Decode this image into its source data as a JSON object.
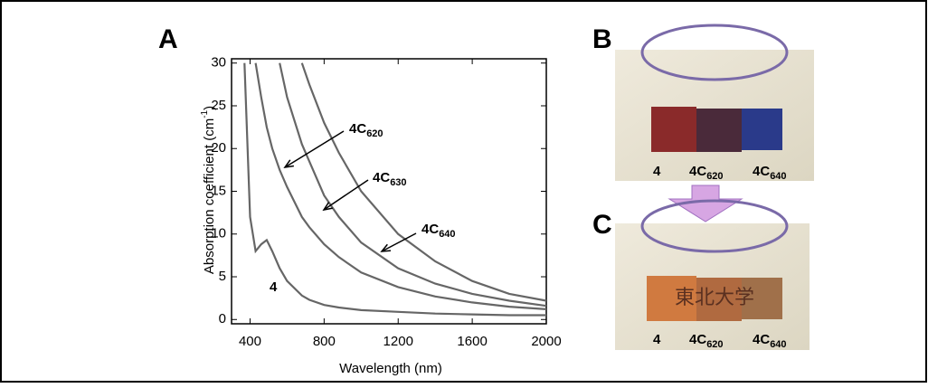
{
  "chart_data": {
    "type": "line",
    "panel": "A",
    "x_label": "Wavelength (nm)",
    "y_label": {
      "text": "Absorption coefficient (cm",
      "sup": "-1",
      "tail": ")"
    },
    "x": [
      370,
      400,
      430,
      460,
      490,
      520,
      560,
      600,
      680,
      720,
      800,
      880,
      1000,
      1200,
      1400,
      1600,
      1800,
      2000
    ],
    "series": [
      {
        "name": {
          "text": "4"
        },
        "color": "#666666",
        "values": [
          30,
          12,
          8,
          8.8,
          9.3,
          8,
          6,
          4.5,
          2.8,
          2.3,
          1.7,
          1.4,
          1.1,
          0.9,
          0.7,
          0.6,
          0.5,
          0.5
        ]
      },
      {
        "name": {
          "text": "4C",
          "sub": "620"
        },
        "color": "#666666",
        "values": [
          null,
          null,
          30,
          26,
          22.5,
          20,
          17.5,
          15.5,
          12,
          10.8,
          8.8,
          7.3,
          5.5,
          3.8,
          2.7,
          2,
          1.5,
          1.2
        ]
      },
      {
        "name": {
          "text": "4C",
          "sub": "630"
        },
        "color": "#666666",
        "values": [
          null,
          null,
          null,
          null,
          null,
          null,
          30,
          26,
          20.5,
          18.5,
          14.5,
          12,
          9,
          6,
          4.2,
          3,
          2.2,
          1.6
        ]
      },
      {
        "name": {
          "text": "4C",
          "sub": "640"
        },
        "color": "#666666",
        "values": [
          null,
          null,
          null,
          null,
          null,
          null,
          null,
          null,
          30,
          27.5,
          23,
          19.5,
          15,
          10,
          6.8,
          4.5,
          3,
          2.2
        ]
      }
    ],
    "xlim": [
      300,
      2000
    ],
    "ylim": [
      -0.5,
      30.5
    ],
    "xticks": [
      400,
      800,
      1200,
      1600,
      2000
    ],
    "yticks": [
      0,
      5,
      10,
      15,
      20,
      25,
      30
    ]
  },
  "photos": [
    {
      "panel": "B",
      "labels": [
        {
          "text": "4"
        },
        {
          "text": "4C",
          "sub": "620"
        },
        {
          "text": "4C",
          "sub": "640"
        }
      ]
    },
    {
      "panel": "C",
      "stamp": "東北大学",
      "labels": [
        {
          "text": "4"
        },
        {
          "text": "4C",
          "sub": "620"
        },
        {
          "text": "4C",
          "sub": "640"
        }
      ]
    }
  ]
}
